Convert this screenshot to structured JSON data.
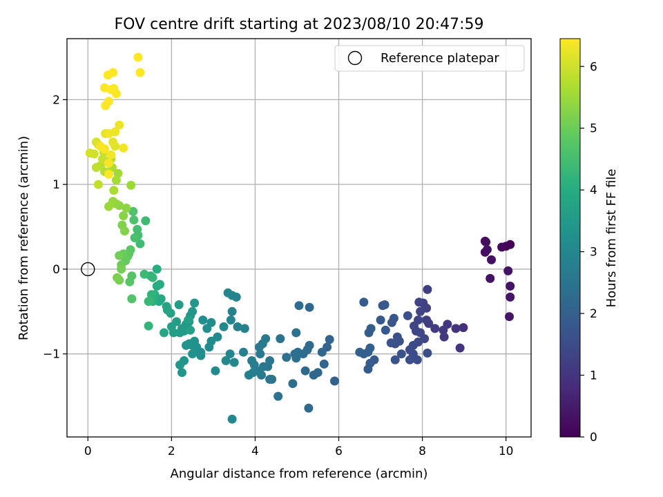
{
  "chart_data": {
    "type": "scatter",
    "title": "FOV centre drift starting at 2023/08/10 20:47:59",
    "xlabel": "Angular distance from reference (arcmin)",
    "ylabel": "Rotation from reference (arcmin)",
    "xlim": [
      -0.5,
      10.6
    ],
    "ylim": [
      -1.98,
      2.72
    ],
    "xticks": [
      0,
      2,
      4,
      6,
      8,
      10
    ],
    "yticks": [
      -1,
      0,
      1,
      2
    ],
    "grid": true,
    "legend": {
      "position": "top-right",
      "entries": [
        "Reference platepar"
      ]
    },
    "reference_point": {
      "x": 0,
      "y": 0,
      "label": "Reference platepar",
      "marker": "open-circle"
    },
    "colorbar": {
      "label": "Hours from first FF file",
      "range": [
        0,
        6.45
      ],
      "ticks": [
        0,
        1,
        2,
        3,
        4,
        5,
        6
      ],
      "colormap": "viridis"
    },
    "points": [
      [
        10.1,
        0.29,
        0.05
      ],
      [
        10.0,
        0.27,
        0.1
      ],
      [
        9.9,
        0.26,
        0.15
      ],
      [
        9.5,
        0.33,
        0.2
      ],
      [
        9.52,
        0.32,
        0.22
      ],
      [
        9.5,
        0.2,
        0.25
      ],
      [
        9.55,
        0.23,
        0.28
      ],
      [
        9.65,
        0.11,
        0.3
      ],
      [
        9.62,
        -0.11,
        0.32
      ],
      [
        10.05,
        -0.02,
        0.35
      ],
      [
        10.1,
        -0.2,
        0.37
      ],
      [
        10.1,
        -0.33,
        0.4
      ],
      [
        10.08,
        -0.56,
        0.42
      ],
      [
        8.98,
        -0.69,
        0.9
      ],
      [
        8.8,
        -0.7,
        0.95
      ],
      [
        8.9,
        -0.93,
        1.0
      ],
      [
        8.6,
        -0.65,
        1.05
      ],
      [
        8.5,
        -0.72,
        1.1
      ],
      [
        8.52,
        -0.8,
        1.12
      ],
      [
        8.3,
        -0.7,
        1.15
      ],
      [
        8.15,
        -0.64,
        1.18
      ],
      [
        8.1,
        -0.6,
        1.2
      ],
      [
        8.12,
        -0.24,
        1.22
      ],
      [
        8.1,
        -0.46,
        1.25
      ],
      [
        8.02,
        -0.4,
        1.27
      ],
      [
        7.92,
        -0.39,
        1.3
      ],
      [
        7.95,
        -0.5,
        1.32
      ],
      [
        7.9,
        -0.6,
        1.34
      ],
      [
        7.8,
        -0.67,
        1.36
      ],
      [
        7.85,
        -0.73,
        1.38
      ],
      [
        7.95,
        -0.75,
        1.4
      ],
      [
        8.05,
        -0.82,
        1.42
      ],
      [
        7.9,
        -0.86,
        1.44
      ],
      [
        7.78,
        -0.9,
        1.46
      ],
      [
        7.7,
        -0.95,
        1.48
      ],
      [
        7.78,
        -1.0,
        1.5
      ],
      [
        7.88,
        -1.07,
        1.52
      ],
      [
        7.7,
        -1.07,
        1.54
      ],
      [
        7.65,
        -0.55,
        1.56
      ],
      [
        8.12,
        -0.99,
        1.58
      ],
      [
        7.4,
        -0.8,
        1.6
      ],
      [
        7.45,
        -0.85,
        1.62
      ],
      [
        7.35,
        -0.88,
        1.64
      ],
      [
        7.25,
        -0.87,
        1.66
      ],
      [
        7.35,
        -1.07,
        1.68
      ],
      [
        7.5,
        -1.0,
        1.7
      ],
      [
        7.32,
        -0.58,
        1.72
      ],
      [
        7.27,
        -0.63,
        1.74
      ],
      [
        7.12,
        -0.72,
        1.76
      ],
      [
        7.0,
        -0.6,
        1.78
      ],
      [
        7.05,
        -0.43,
        1.8
      ],
      [
        7.1,
        -0.42,
        1.82
      ],
      [
        6.85,
        -1.07,
        1.84
      ],
      [
        6.75,
        -1.11,
        1.86
      ],
      [
        6.7,
        -1.18,
        1.88
      ],
      [
        6.6,
        -0.39,
        1.9
      ],
      [
        6.72,
        -0.75,
        1.92
      ],
      [
        6.77,
        -0.7,
        1.94
      ],
      [
        6.75,
        -0.93,
        1.96
      ],
      [
        6.7,
        -0.98,
        1.98
      ],
      [
        6.5,
        -0.98,
        2.0
      ],
      [
        6.6,
        -1.0,
        2.02
      ],
      [
        5.9,
        -1.32,
        2.05
      ],
      [
        5.78,
        -0.83,
        2.08
      ],
      [
        5.65,
        -1.12,
        2.1
      ],
      [
        5.72,
        -0.92,
        2.12
      ],
      [
        5.6,
        -0.98,
        2.14
      ],
      [
        5.5,
        -1.22,
        2.16
      ],
      [
        5.4,
        -1.25,
        2.18
      ],
      [
        5.3,
        -0.45,
        2.2
      ],
      [
        5.28,
        -1.64,
        2.22
      ],
      [
        5.2,
        -1.2,
        2.24
      ],
      [
        5.3,
        -0.9,
        2.26
      ],
      [
        5.25,
        -0.95,
        2.28
      ],
      [
        5.15,
        -1.0,
        2.3
      ],
      [
        5.05,
        -0.43,
        2.32
      ],
      [
        5.02,
        -0.98,
        2.34
      ],
      [
        4.98,
        -1.05,
        2.36
      ],
      [
        4.95,
        -1.0,
        2.38
      ],
      [
        4.9,
        -1.35,
        2.4
      ],
      [
        4.98,
        -0.75,
        2.42
      ],
      [
        4.75,
        -1.04,
        2.44
      ],
      [
        4.6,
        -0.82,
        2.46
      ],
      [
        4.55,
        -1.5,
        2.48
      ],
      [
        4.4,
        -1.3,
        2.5
      ],
      [
        4.35,
        -1.3,
        2.52
      ],
      [
        4.35,
        -1.08,
        2.54
      ],
      [
        4.3,
        -1.15,
        2.56
      ],
      [
        4.2,
        -1.15,
        2.58
      ],
      [
        4.25,
        -0.82,
        2.6
      ],
      [
        4.18,
        -0.88,
        2.62
      ],
      [
        4.1,
        -0.92,
        2.64
      ],
      [
        4.12,
        -1.0,
        2.66
      ],
      [
        4.15,
        -1.25,
        2.68
      ],
      [
        4.05,
        -1.2,
        2.7
      ],
      [
        3.98,
        -1.13,
        2.72
      ],
      [
        3.92,
        -1.08,
        2.74
      ],
      [
        3.95,
        -1.22,
        2.76
      ],
      [
        3.85,
        -1.25,
        2.78
      ],
      [
        3.75,
        -0.7,
        2.8
      ],
      [
        3.72,
        -0.98,
        2.82
      ],
      [
        3.58,
        -0.68,
        2.84
      ],
      [
        3.55,
        -0.33,
        2.86
      ],
      [
        3.45,
        -0.5,
        2.88
      ],
      [
        3.42,
        -0.6,
        2.9
      ],
      [
        3.45,
        -0.31,
        2.92
      ],
      [
        3.35,
        -0.28,
        2.94
      ],
      [
        3.5,
        -1.1,
        2.96
      ],
      [
        3.45,
        -1.77,
        2.98
      ],
      [
        3.4,
        -1.0,
        3.0
      ],
      [
        3.3,
        -1.08,
        3.02
      ],
      [
        3.25,
        -0.68,
        3.04
      ],
      [
        3.1,
        -0.8,
        3.06
      ],
      [
        3.05,
        -1.2,
        3.08
      ],
      [
        2.95,
        -0.85,
        3.1
      ],
      [
        2.9,
        -0.92,
        3.12
      ],
      [
        2.95,
        -0.63,
        3.14
      ],
      [
        2.85,
        -0.7,
        3.16
      ],
      [
        2.75,
        -0.6,
        3.18
      ],
      [
        2.7,
        -0.98,
        3.2
      ],
      [
        2.7,
        -1.02,
        3.22
      ],
      [
        2.6,
        -0.92,
        3.24
      ],
      [
        2.55,
        -0.85,
        3.26
      ],
      [
        2.5,
        -0.9,
        3.28
      ],
      [
        2.5,
        -1.0,
        3.3
      ],
      [
        2.42,
        -0.88,
        3.32
      ],
      [
        2.35,
        -0.9,
        3.34
      ],
      [
        2.3,
        -1.08,
        3.36
      ],
      [
        2.25,
        -1.22,
        3.38
      ],
      [
        2.2,
        -1.13,
        3.4
      ],
      [
        2.55,
        -0.4,
        3.42
      ],
      [
        2.5,
        -0.5,
        3.44
      ],
      [
        2.45,
        -0.55,
        3.46
      ],
      [
        2.42,
        -0.62,
        3.48
      ],
      [
        2.35,
        -0.65,
        3.5
      ],
      [
        2.3,
        -0.73,
        3.52
      ],
      [
        2.25,
        -0.7,
        3.54
      ],
      [
        2.2,
        -0.75,
        3.56
      ],
      [
        2.18,
        -0.42,
        3.58
      ],
      [
        2.12,
        -0.62,
        3.6
      ],
      [
        2.05,
        -0.75,
        3.62
      ],
      [
        2.0,
        -0.68,
        3.64
      ],
      [
        2.4,
        -0.6,
        3.66
      ],
      [
        2.45,
        -0.72,
        3.68
      ],
      [
        1.98,
        -0.52,
        3.72
      ],
      [
        1.9,
        -0.48,
        3.76
      ],
      [
        1.88,
        -0.44,
        3.8
      ],
      [
        1.82,
        -0.75,
        3.84
      ],
      [
        1.75,
        -0.35,
        3.88
      ],
      [
        1.7,
        -0.38,
        3.92
      ],
      [
        1.72,
        -0.18,
        3.96
      ],
      [
        1.65,
        -0.2,
        4.0
      ],
      [
        1.65,
        0.0,
        4.04
      ],
      [
        1.6,
        -0.3,
        4.08
      ],
      [
        1.55,
        -0.38,
        4.12
      ],
      [
        1.5,
        -0.08,
        4.16
      ],
      [
        1.52,
        -0.3,
        4.2
      ],
      [
        1.45,
        -0.67,
        4.24
      ],
      [
        1.55,
        -0.1,
        4.28
      ],
      [
        1.45,
        -0.38,
        4.32
      ],
      [
        1.35,
        -0.06,
        4.36
      ],
      [
        1.38,
        0.57,
        4.4
      ],
      [
        1.25,
        0.3,
        4.44
      ],
      [
        1.2,
        0.4,
        4.48
      ],
      [
        1.18,
        0.47,
        4.52
      ],
      [
        1.12,
        0.37,
        4.56
      ],
      [
        1.1,
        0.58,
        4.6
      ],
      [
        1.08,
        0.68,
        4.64
      ],
      [
        1.05,
        -0.35,
        4.68
      ],
      [
        1.05,
        -0.08,
        4.72
      ],
      [
        1.0,
        -0.15,
        4.76
      ],
      [
        1.02,
        0.23,
        4.8
      ],
      [
        0.98,
        0.18,
        4.84
      ],
      [
        0.95,
        0.15,
        4.88
      ],
      [
        0.9,
        0.1,
        4.92
      ],
      [
        0.85,
        0.18,
        4.96
      ],
      [
        0.8,
        0.05,
        5.0
      ],
      [
        0.75,
        0.16,
        5.04
      ],
      [
        0.8,
        0.0,
        5.08
      ],
      [
        0.75,
        -0.13,
        5.12
      ],
      [
        0.7,
        -0.1,
        5.16
      ],
      [
        0.82,
        0.52,
        5.2
      ],
      [
        0.88,
        0.45,
        5.24
      ],
      [
        0.85,
        0.63,
        5.28
      ],
      [
        0.92,
        0.72,
        5.32
      ],
      [
        0.75,
        0.75,
        5.36
      ],
      [
        0.68,
        0.77,
        5.4
      ],
      [
        0.6,
        0.8,
        5.44
      ],
      [
        0.5,
        0.74,
        5.48
      ],
      [
        1.03,
        0.99,
        5.52
      ],
      [
        0.72,
        1.13,
        5.56
      ],
      [
        0.68,
        1.05,
        5.6
      ],
      [
        0.62,
        0.93,
        5.64
      ],
      [
        0.58,
        1.2,
        5.68
      ],
      [
        0.55,
        1.3,
        5.72
      ],
      [
        0.4,
        1.15,
        5.76
      ],
      [
        0.3,
        1.22,
        5.8
      ],
      [
        0.2,
        1.2,
        5.84
      ],
      [
        0.25,
        1.0,
        5.88
      ],
      [
        0.35,
        1.3,
        5.92
      ],
      [
        0.38,
        1.38,
        5.96
      ],
      [
        0.15,
        1.36,
        6.0
      ],
      [
        0.05,
        1.37,
        6.04
      ],
      [
        0.2,
        1.5,
        6.08
      ],
      [
        0.25,
        1.47,
        6.12
      ],
      [
        0.65,
        1.45,
        6.16
      ],
      [
        0.6,
        1.5,
        6.2
      ],
      [
        0.42,
        1.6,
        6.24
      ],
      [
        0.75,
        1.7,
        6.28
      ],
      [
        0.65,
        1.62,
        6.3
      ],
      [
        0.5,
        1.6,
        6.32
      ],
      [
        0.85,
        1.43,
        6.34
      ],
      [
        0.55,
        1.35,
        6.36
      ],
      [
        0.5,
        1.25,
        6.38
      ],
      [
        0.4,
        1.42,
        6.4
      ],
      [
        0.3,
        1.45,
        6.4
      ],
      [
        0.5,
        1.12,
        6.42
      ],
      [
        0.42,
        1.93,
        6.42
      ],
      [
        0.5,
        1.98,
        6.43
      ],
      [
        0.68,
        2.07,
        6.43
      ],
      [
        0.62,
        2.13,
        6.44
      ],
      [
        0.4,
        2.14,
        6.44
      ],
      [
        0.55,
        2.12,
        6.44
      ],
      [
        0.48,
        2.29,
        6.45
      ],
      [
        0.6,
        2.32,
        6.45
      ],
      [
        1.2,
        2.5,
        6.45
      ],
      [
        1.25,
        2.32,
        6.45
      ]
    ]
  }
}
